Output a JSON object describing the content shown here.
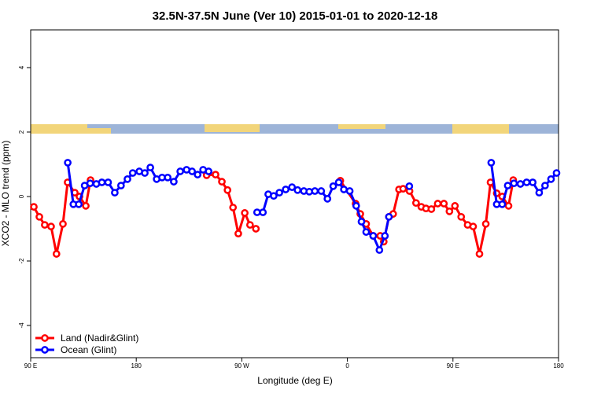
{
  "chart_data": {
    "type": "line",
    "title": "32.5N-37.5N June (Ver 10)   2015-01-01 to 2020-12-18",
    "x_label": "Longitude (deg E)",
    "y_label": "XCO2 - MLO trend (ppm)",
    "xlim": [
      90,
      540
    ],
    "ylim": [
      -5,
      5.17
    ],
    "xticks": [
      {
        "value": 90,
        "label": "90 E"
      },
      {
        "value": 180,
        "label": "180"
      },
      {
        "value": 270,
        "label": "90 W"
      },
      {
        "value": 360,
        "label": "0"
      },
      {
        "value": 450,
        "label": "90 E"
      },
      {
        "value": 540,
        "label": "180"
      }
    ],
    "yticks": [
      -4,
      -2,
      0,
      2,
      4
    ],
    "legend": "bottom-left",
    "series": [
      {
        "name": "Land (Nadir&Glint)",
        "color": "#ff0000",
        "x": [
          92.7,
          97.4,
          102,
          107.4,
          112,
          117.5,
          121.5,
          127.6,
          131.6,
          137,
          141,
          null,
          240,
          247.6,
          253,
          257.8,
          262.5,
          267,
          272.5,
          277,
          282,
          null,
          354,
          367,
          371,
          376,
          382,
          388,
          391,
          395.4,
          399,
          404,
          407.5,
          413,
          418.5,
          423,
          427,
          431.6,
          437,
          442.3,
          447,
          451.7,
          457,
          462.5,
          467.2,
          472.6,
          478,
          482,
          487.3,
          492,
          497.4,
          501.4
        ],
        "values": [
          -0.32,
          -0.63,
          -0.88,
          -0.93,
          -1.78,
          -0.85,
          0.44,
          0.12,
          0.0,
          -0.29,
          0.51,
          null,
          0.66,
          0.68,
          0.46,
          0.2,
          -0.34,
          -1.15,
          -0.51,
          -0.88,
          -1.0,
          null,
          0.49,
          -0.22,
          -0.54,
          -0.85,
          -1.22,
          -1.22,
          -1.4,
          -0.63,
          -0.54,
          0.22,
          0.24,
          0.17,
          -0.2,
          -0.32,
          -0.37,
          -0.39,
          -0.22,
          -0.22,
          -0.46,
          -0.29,
          -0.63,
          -0.88,
          -0.93,
          -1.78,
          -0.85,
          0.44,
          0.1,
          0.0,
          -0.29,
          0.51
        ]
      },
      {
        "name": "Ocean (Glint)",
        "color": "#0000ff",
        "x": [
          121.6,
          126.4,
          131,
          136,
          140.7,
          146,
          150.7,
          156,
          161.7,
          167,
          172.5,
          177,
          182.6,
          187.3,
          192,
          197.4,
          202,
          206.8,
          212,
          217.5,
          222.9,
          227.6,
          232.3,
          237,
          241.7,
          null,
          283,
          288,
          292.5,
          297.2,
          302,
          307.4,
          312.8,
          317.5,
          322.9,
          327.5,
          332.3,
          337.7,
          343,
          347.9,
          352.6,
          357,
          362,
          367.5,
          372,
          376,
          382,
          387.3,
          392,
          395.4,
          null,
          412.8,
          null,
          482.6,
          487.3,
          492,
          496.7,
          502,
          507.5,
          512.8,
          518,
          523.5,
          528.5,
          533.6,
          538.3
        ],
        "values": [
          1.05,
          -0.24,
          -0.24,
          0.34,
          0.41,
          0.39,
          0.44,
          0.44,
          0.12,
          0.34,
          0.54,
          0.73,
          0.78,
          0.73,
          0.9,
          0.54,
          0.59,
          0.59,
          0.46,
          0.78,
          0.83,
          0.78,
          0.68,
          0.83,
          0.78,
          null,
          -0.49,
          -0.49,
          0.07,
          0.02,
          0.12,
          0.22,
          0.29,
          0.2,
          0.17,
          0.15,
          0.17,
          0.17,
          -0.07,
          0.32,
          0.44,
          0.22,
          0.17,
          -0.29,
          -0.78,
          -1.1,
          -1.22,
          -1.66,
          -1.22,
          -0.63,
          null,
          0.32,
          null,
          1.05,
          -0.24,
          -0.24,
          0.34,
          0.41,
          0.39,
          0.44,
          0.44,
          0.12,
          0.34,
          0.54,
          0.73
        ]
      }
    ]
  }
}
